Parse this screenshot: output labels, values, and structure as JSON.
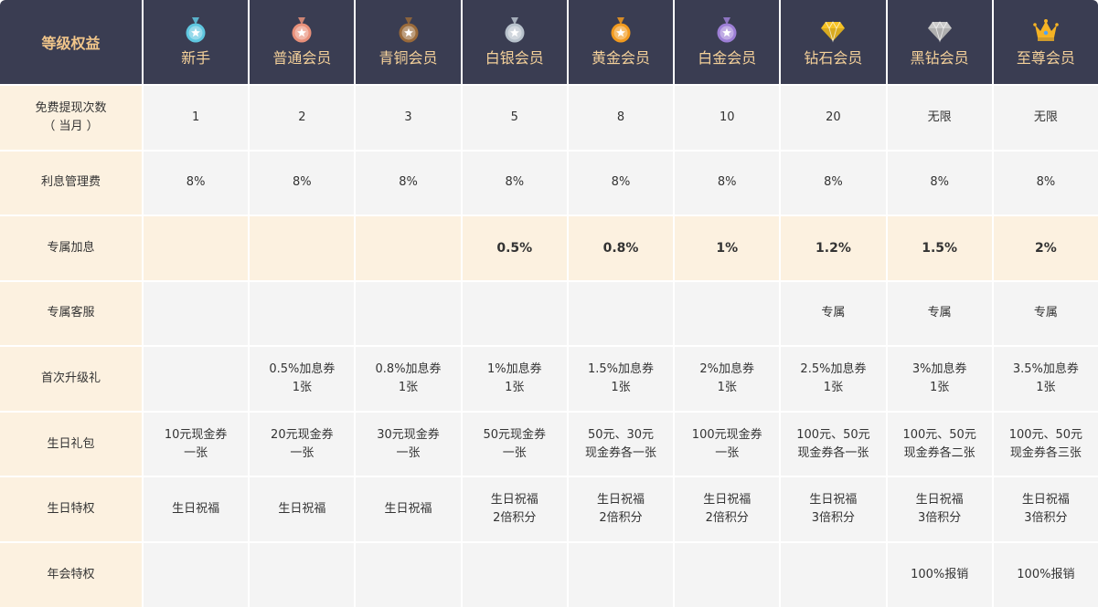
{
  "header": {
    "corner_label": "等级权益",
    "levels": [
      {
        "name": "新手",
        "icon": "cyan-medal-icon",
        "color": "#5fc7e0"
      },
      {
        "name": "普通会员",
        "icon": "pink-medal-icon",
        "color": "#e8907a"
      },
      {
        "name": "青铜会员",
        "icon": "bronze-medal-icon",
        "color": "#9a6a3a"
      },
      {
        "name": "白银会员",
        "icon": "silver-medal-icon",
        "color": "#b8c2cc"
      },
      {
        "name": "黄金会员",
        "icon": "gold-medal-icon",
        "color": "#f29a1e"
      },
      {
        "name": "白金会员",
        "icon": "platinum-medal-icon",
        "color": "#9d7fd6"
      },
      {
        "name": "钻石会员",
        "icon": "gold-diamond-icon",
        "color": "#f7c325"
      },
      {
        "name": "黑钻会员",
        "icon": "black-diamond-icon",
        "color": "#c9c9c9"
      },
      {
        "name": "至尊会员",
        "icon": "crown-icon",
        "color": "#f5b324"
      }
    ]
  },
  "rows": [
    {
      "label": "免费提现次数\n（ 当月 ）",
      "highlight": false,
      "values": [
        "1",
        "2",
        "3",
        "5",
        "8",
        "10",
        "20",
        "无限",
        "无限"
      ]
    },
    {
      "label": "利息管理费",
      "highlight": false,
      "values": [
        "8%",
        "8%",
        "8%",
        "8%",
        "8%",
        "8%",
        "8%",
        "8%",
        "8%"
      ]
    },
    {
      "label": "专属加息",
      "highlight": true,
      "values": [
        "",
        "",
        "",
        "0.5%",
        "0.8%",
        "1%",
        "1.2%",
        "1.5%",
        "2%"
      ]
    },
    {
      "label": "专属客服",
      "highlight": false,
      "values": [
        "",
        "",
        "",
        "",
        "",
        "",
        "专属",
        "专属",
        "专属"
      ]
    },
    {
      "label": "首次升级礼",
      "highlight": false,
      "values": [
        "",
        "0.5%加息券\n1张",
        "0.8%加息券\n1张",
        "1%加息券\n1张",
        "1.5%加息券\n1张",
        "2%加息券\n1张",
        "2.5%加息券\n1张",
        "3%加息券\n1张",
        "3.5%加息券\n1张"
      ]
    },
    {
      "label": "生日礼包",
      "highlight": false,
      "values": [
        "10元现金券\n一张",
        "20元现金券\n一张",
        "30元现金券\n一张",
        "50元现金券\n一张",
        "50元、30元\n现金券各一张",
        "100元现金券\n一张",
        "100元、50元\n现金券各一张",
        "100元、50元\n现金券各二张",
        "100元、50元\n现金券各三张"
      ]
    },
    {
      "label": "生日特权",
      "highlight": false,
      "values": [
        "生日祝福",
        "生日祝福",
        "生日祝福",
        "生日祝福\n2倍积分",
        "生日祝福\n2倍积分",
        "生日祝福\n2倍积分",
        "生日祝福\n3倍积分",
        "生日祝福\n3倍积分",
        "生日祝福\n3倍积分"
      ]
    },
    {
      "label": "年会特权",
      "highlight": false,
      "values": [
        "",
        "",
        "",
        "",
        "",
        "",
        "",
        "100%报销",
        "100%报销"
      ]
    }
  ]
}
